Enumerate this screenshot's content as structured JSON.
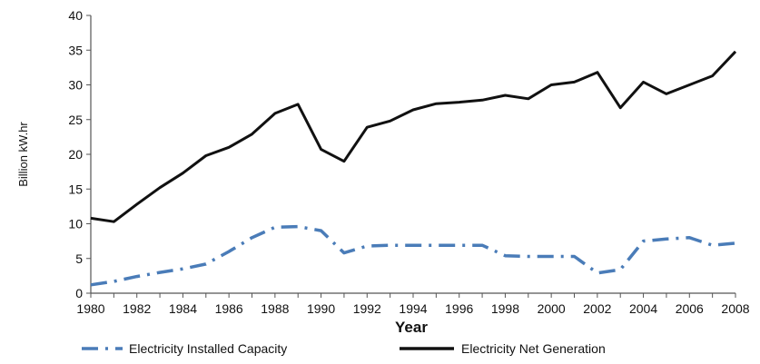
{
  "chart_data": {
    "type": "line",
    "xlabel": "Year",
    "ylabel": "Billion kW.hr",
    "xlim": [
      1980,
      2008
    ],
    "ylim": [
      0,
      40
    ],
    "y_ticks": [
      0,
      5,
      10,
      15,
      20,
      25,
      30,
      35,
      40
    ],
    "x_ticks": [
      1980,
      1982,
      1984,
      1986,
      1988,
      1990,
      1992,
      1994,
      1996,
      1998,
      2000,
      2002,
      2004,
      2006,
      2008
    ],
    "grid": false,
    "legend_position": "bottom",
    "x": [
      1980,
      1981,
      1982,
      1983,
      1984,
      1985,
      1986,
      1987,
      1988,
      1989,
      1990,
      1991,
      1992,
      1993,
      1994,
      1995,
      1996,
      1997,
      1998,
      1999,
      2000,
      2001,
      2002,
      2003,
      2004,
      2005,
      2006,
      2007,
      2008
    ],
    "series": [
      {
        "name": "Electricity Installed Capacity",
        "color": "#4a7cb8",
        "style": "dash-dot",
        "values": [
          1.2,
          1.7,
          2.4,
          3.0,
          3.5,
          4.2,
          6.0,
          8.0,
          9.5,
          9.6,
          9.0,
          5.8,
          6.8,
          6.9,
          6.9,
          6.9,
          6.9,
          6.9,
          5.4,
          5.3,
          5.3,
          5.3,
          2.9,
          3.4,
          7.5,
          7.8,
          8.0,
          6.9,
          7.2
        ]
      },
      {
        "name": "Electricity Net Generation",
        "color": "#111111",
        "style": "solid",
        "values": [
          10.8,
          10.3,
          12.8,
          15.2,
          17.3,
          19.8,
          21.0,
          22.9,
          25.9,
          27.2,
          20.7,
          19.0,
          23.9,
          24.8,
          26.4,
          27.3,
          27.5,
          27.8,
          28.5,
          28.0,
          30.0,
          30.4,
          31.8,
          26.7,
          30.4,
          28.7,
          30.0,
          31.3,
          34.8
        ]
      }
    ]
  }
}
